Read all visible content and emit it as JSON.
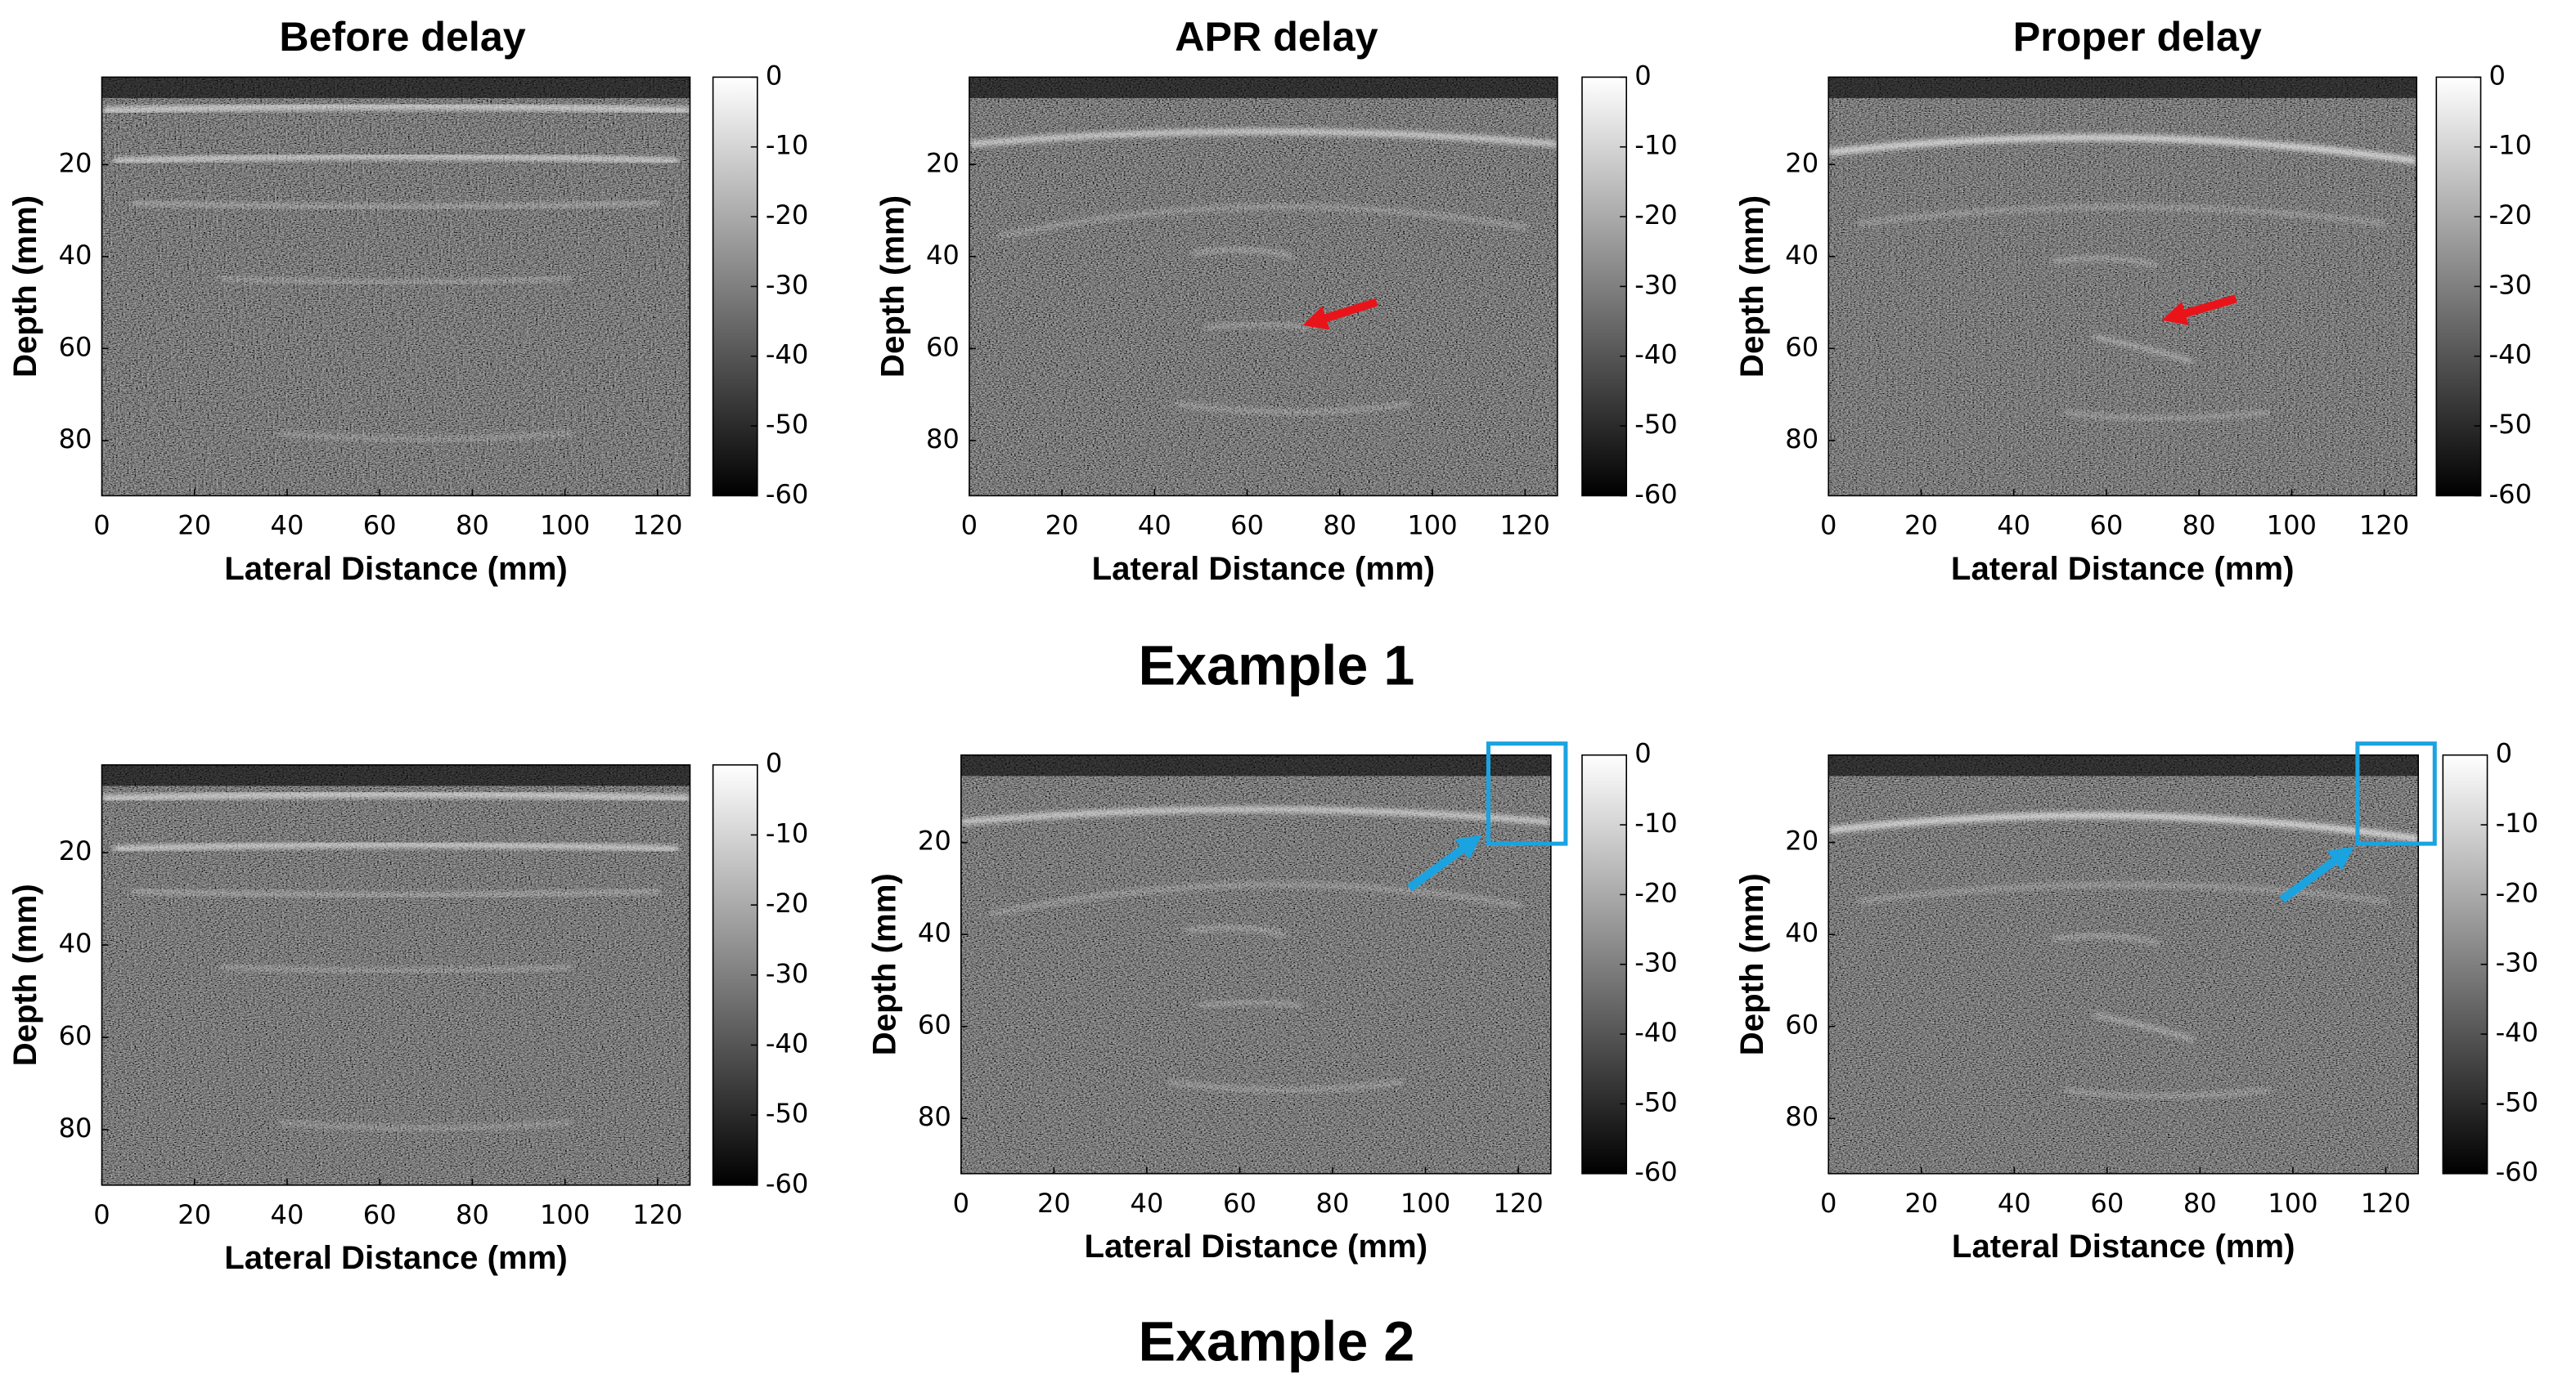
{
  "figure": {
    "column_titles": [
      "Before delay",
      "APR delay",
      "Proper delay"
    ],
    "row_titles": [
      "Example 1",
      "Example 2"
    ],
    "axes": {
      "xlabel": "Lateral Distance (mm)",
      "ylabel": "Depth (mm)",
      "xlim": [
        0,
        127
      ],
      "xticks": [
        0,
        20,
        40,
        60,
        80,
        100,
        120
      ],
      "ylim": [
        1,
        92
      ],
      "yticks": [
        20,
        40,
        60,
        80
      ],
      "clim": [
        -60,
        0
      ],
      "cticks": [
        0,
        -10,
        -20,
        -30,
        -40,
        -50,
        -60
      ]
    }
  }
}
